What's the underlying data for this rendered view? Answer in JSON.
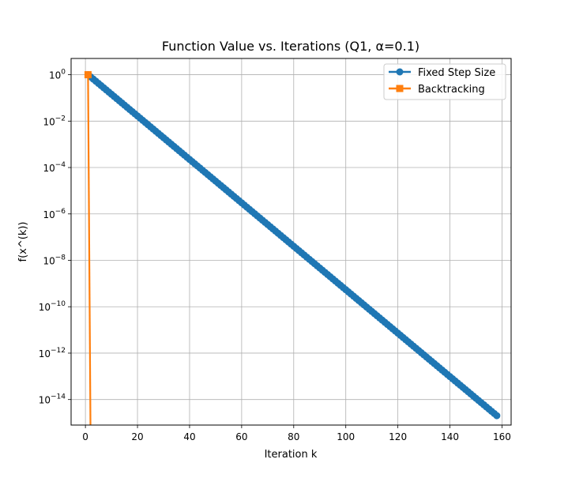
{
  "chart_data": {
    "type": "line",
    "title": "Function Value vs. Iterations (Q1, α=0.1)",
    "xlabel": "Iteration k",
    "ylabel": "f(x^(k))",
    "xlim": [
      -5.5,
      163.5
    ],
    "xticks": [
      0,
      20,
      40,
      60,
      80,
      100,
      120,
      140,
      160
    ],
    "yscale": "log",
    "ylim_log10": [
      -15.1,
      0.7
    ],
    "yticks": [
      {
        "exp": 0,
        "base": "10",
        "sup": "0"
      },
      {
        "exp": -2,
        "base": "10",
        "sup": "−2"
      },
      {
        "exp": -4,
        "base": "10",
        "sup": "−4"
      },
      {
        "exp": -6,
        "base": "10",
        "sup": "−6"
      },
      {
        "exp": -8,
        "base": "10",
        "sup": "−8"
      },
      {
        "exp": -10,
        "base": "10",
        "sup": "−10"
      },
      {
        "exp": -12,
        "base": "10",
        "sup": "−12"
      },
      {
        "exp": -14,
        "base": "10",
        "sup": "−14"
      }
    ],
    "grid": true,
    "legend_position": "top-right",
    "series": [
      {
        "name": "Fixed Step Size",
        "color": "#1f77b4",
        "marker": "circle",
        "x_start": 1,
        "x_end": 158,
        "y_start": 1.0,
        "log10_slope": -0.0936
      },
      {
        "name": "Backtracking",
        "color": "#ff7f0e",
        "marker": "square",
        "x": [
          1,
          2
        ],
        "y": [
          1.0,
          1e-30
        ]
      }
    ]
  }
}
